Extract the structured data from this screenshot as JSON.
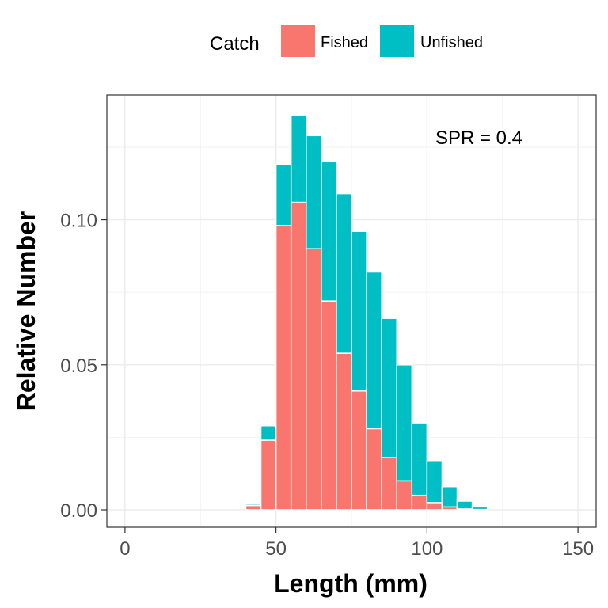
{
  "chart_data": {
    "type": "bar",
    "stacked": true,
    "xlabel": "Length (mm)",
    "ylabel": "Relative Number",
    "xlim": [
      -6,
      156
    ],
    "ylim": [
      -0.006,
      0.143
    ],
    "xticks": [
      0,
      50,
      100,
      150
    ],
    "yticks": [
      0.0,
      0.05,
      0.1
    ],
    "ytick_labels": [
      "0.00",
      "0.05",
      "0.10"
    ],
    "bin_width": 5,
    "grid": true,
    "legend": {
      "title": "Catch",
      "position": "top",
      "entries": [
        {
          "name": "Fished",
          "color": "#F8766D"
        },
        {
          "name": "Unfished",
          "color": "#00BFC4"
        }
      ]
    },
    "annotation": {
      "text": "SPR = 0.4",
      "x": 112,
      "y": 0.129
    },
    "x": [
      42.5,
      47.5,
      52.5,
      57.5,
      62.5,
      67.5,
      72.5,
      77.5,
      82.5,
      87.5,
      92.5,
      97.5,
      102.5,
      107.5,
      112.5,
      117.5
    ],
    "series": [
      {
        "name": "Fished",
        "color": "#F8766D",
        "values": [
          0.0015,
          0.024,
          0.098,
          0.106,
          0.09,
          0.072,
          0.054,
          0.041,
          0.028,
          0.018,
          0.01,
          0.005,
          0.0025,
          0.001,
          0.0003,
          0.0001
        ]
      },
      {
        "name": "Unfished",
        "color": "#00BFC4",
        "values": [
          0.0005,
          0.005,
          0.021,
          0.03,
          0.039,
          0.048,
          0.055,
          0.055,
          0.054,
          0.048,
          0.04,
          0.025,
          0.0145,
          0.007,
          0.0027,
          0.0009
        ]
      }
    ]
  }
}
